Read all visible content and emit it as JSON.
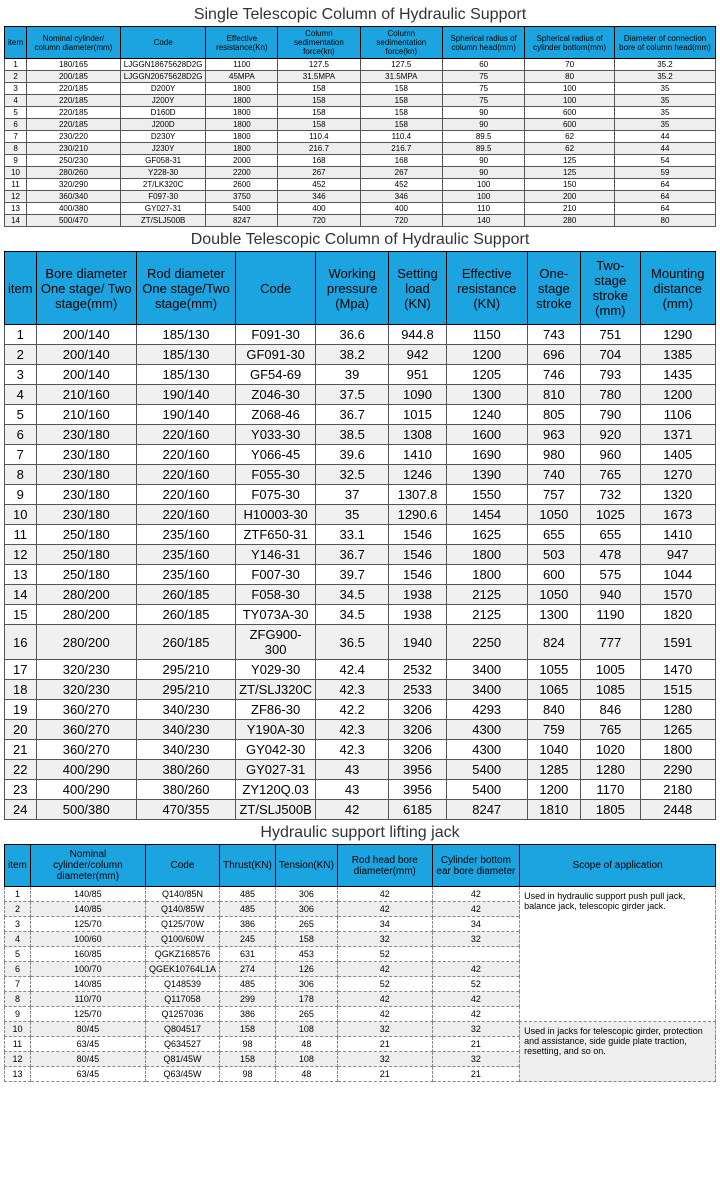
{
  "titles": {
    "t1": "Single Telescopic Column of Hydraulic Support",
    "t2": "Double Telescopic Column of Hydraulic Support",
    "t3": "Hydraulic support lifting jack"
  },
  "table1": {
    "headers": [
      "item",
      "Nominal cylinder/ column diameter(mm)",
      "Code",
      "Effective resistance(Kn)",
      "Column sedimentation force(kn)",
      "Column sedimentation force(kn)",
      "Spherical radius of column head(mm)",
      "Spherical radius of cylinder bottom(mm)",
      "Diameter of connection bore of column head(mm)"
    ],
    "rows": [
      [
        "1",
        "180/165",
        "LJGGN18675628D2G",
        "1100",
        "127.5",
        "127.5",
        "60",
        "70",
        "35.2"
      ],
      [
        "2",
        "200/185",
        "LJGGN20675628D2G",
        "45MPA",
        "31.5MPA",
        "31.5MPA",
        "75",
        "80",
        "35.2"
      ],
      [
        "3",
        "220/185",
        "D200Y",
        "1800",
        "158",
        "158",
        "75",
        "100",
        "35"
      ],
      [
        "4",
        "220/185",
        "J200Y",
        "1800",
        "158",
        "158",
        "75",
        "100",
        "35"
      ],
      [
        "5",
        "220/185",
        "D160D",
        "1800",
        "158",
        "158",
        "90",
        "600",
        "35"
      ],
      [
        "6",
        "220/185",
        "J200D",
        "1800",
        "158",
        "158",
        "90",
        "600",
        "35"
      ],
      [
        "7",
        "230/220",
        "D230Y",
        "1800",
        "110.4",
        "110.4",
        "89.5",
        "62",
        "44"
      ],
      [
        "8",
        "230/210",
        "J230Y",
        "1800",
        "216.7",
        "216.7",
        "89.5",
        "62",
        "44"
      ],
      [
        "9",
        "250/230",
        "GF058-31",
        "2000",
        "168",
        "168",
        "90",
        "125",
        "54"
      ],
      [
        "10",
        "280/260",
        "Y228-30",
        "2200",
        "267",
        "267",
        "90",
        "125",
        "59"
      ],
      [
        "11",
        "320/290",
        "2T/LK320C",
        "2600",
        "452",
        "452",
        "100",
        "150",
        "64"
      ],
      [
        "12",
        "360/340",
        "F097-30",
        "3750",
        "346",
        "346",
        "100",
        "200",
        "64"
      ],
      [
        "13",
        "400/380",
        "GY027-31",
        "5400",
        "400",
        "400",
        "110",
        "210",
        "64"
      ],
      [
        "14",
        "500/470",
        "ZT/SLJ500B",
        "8247",
        "720",
        "720",
        "140",
        "280",
        "80"
      ]
    ]
  },
  "table2": {
    "headers": [
      "item",
      "Bore diameter One stage/ Two stage(mm)",
      "Rod diameter One stage/Two stage(mm)",
      "Code",
      "Working pressure (Mpa)",
      "Setting load (KN)",
      "Effective resistance (KN)",
      "One-stage stroke",
      "Two-stage stroke (mm)",
      "Mounting distance (mm)"
    ],
    "rows": [
      [
        "1",
        "200/140",
        "185/130",
        "F091-30",
        "36.6",
        "944.8",
        "1150",
        "743",
        "751",
        "1290"
      ],
      [
        "2",
        "200/140",
        "185/130",
        "GF091-30",
        "38.2",
        "942",
        "1200",
        "696",
        "704",
        "1385"
      ],
      [
        "3",
        "200/140",
        "185/130",
        "GF54-69",
        "39",
        "951",
        "1205",
        "746",
        "793",
        "1435"
      ],
      [
        "4",
        "210/160",
        "190/140",
        "Z046-30",
        "37.5",
        "1090",
        "1300",
        "810",
        "780",
        "1200"
      ],
      [
        "5",
        "210/160",
        "190/140",
        "Z068-46",
        "36.7",
        "1015",
        "1240",
        "805",
        "790",
        "1106"
      ],
      [
        "6",
        "230/180",
        "220/160",
        "Y033-30",
        "38.5",
        "1308",
        "1600",
        "963",
        "920",
        "1371"
      ],
      [
        "7",
        "230/180",
        "220/160",
        "Y066-45",
        "39.6",
        "1410",
        "1690",
        "980",
        "960",
        "1405"
      ],
      [
        "8",
        "230/180",
        "220/160",
        "F055-30",
        "32.5",
        "1246",
        "1390",
        "740",
        "765",
        "1270"
      ],
      [
        "9",
        "230/180",
        "220/160",
        "F075-30",
        "37",
        "1307.8",
        "1550",
        "757",
        "732",
        "1320"
      ],
      [
        "10",
        "230/180",
        "220/160",
        "H10003-30",
        "35",
        "1290.6",
        "1454",
        "1050",
        "1025",
        "1673"
      ],
      [
        "11",
        "250/180",
        "235/160",
        "ZTF650-31",
        "33.1",
        "1546",
        "1625",
        "655",
        "655",
        "1410"
      ],
      [
        "12",
        "250/180",
        "235/160",
        "Y146-31",
        "36.7",
        "1546",
        "1800",
        "503",
        "478",
        "947"
      ],
      [
        "13",
        "250/180",
        "235/160",
        "F007-30",
        "39.7",
        "1546",
        "1800",
        "600",
        "575",
        "1044"
      ],
      [
        "14",
        "280/200",
        "260/185",
        "F058-30",
        "34.5",
        "1938",
        "2125",
        "1050",
        "940",
        "1570"
      ],
      [
        "15",
        "280/200",
        "260/185",
        "TY073A-30",
        "34.5",
        "1938",
        "2125",
        "1300",
        "1190",
        "1820"
      ],
      [
        "16",
        "280/200",
        "260/185",
        "ZFG900-300",
        "36.5",
        "1940",
        "2250",
        "824",
        "777",
        "1591"
      ],
      [
        "17",
        "320/230",
        "295/210",
        "Y029-30",
        "42.4",
        "2532",
        "3400",
        "1055",
        "1005",
        "1470"
      ],
      [
        "18",
        "320/230",
        "295/210",
        "ZT/SLJ320C",
        "42.3",
        "2533",
        "3400",
        "1065",
        "1085",
        "1515"
      ],
      [
        "19",
        "360/270",
        "340/230",
        "ZF86-30",
        "42.2",
        "3206",
        "4293",
        "840",
        "846",
        "1280"
      ],
      [
        "20",
        "360/270",
        "340/230",
        "Y190A-30",
        "42.3",
        "3206",
        "4300",
        "759",
        "765",
        "1265"
      ],
      [
        "21",
        "360/270",
        "340/230",
        "GY042-30",
        "42.3",
        "3206",
        "4300",
        "1040",
        "1020",
        "1800"
      ],
      [
        "22",
        "400/290",
        "380/260",
        "GY027-31",
        "43",
        "3956",
        "5400",
        "1285",
        "1280",
        "2290"
      ],
      [
        "23",
        "400/290",
        "380/260",
        "ZY120Q.03",
        "43",
        "3956",
        "5400",
        "1200",
        "1170",
        "2180"
      ],
      [
        "24",
        "500/380",
        "470/355",
        "ZT/SLJ500B",
        "42",
        "6185",
        "8247",
        "1810",
        "1805",
        "2448"
      ]
    ]
  },
  "table3": {
    "headers": [
      "item",
      "Nominal cylinder/column diameter(mm)",
      "Code",
      "Thrust(KN)",
      "Tension(KN)",
      "Rod head bore diameter(mm)",
      "Cylinder bottom ear bore diameter",
      "Scope of application"
    ],
    "rows": [
      [
        "1",
        "140/85",
        "Q140/85N",
        "485",
        "306",
        "42",
        "42"
      ],
      [
        "2",
        "140/85",
        "Q140/85W",
        "485",
        "306",
        "42",
        "42"
      ],
      [
        "3",
        "125/70",
        "Q125/70W",
        "386",
        "265",
        "34",
        "34"
      ],
      [
        "4",
        "100/60",
        "Q100/60W",
        "245",
        "158",
        "32",
        "32"
      ],
      [
        "5",
        "160/85",
        "QGKZ168576",
        "631",
        "453",
        "52",
        ""
      ],
      [
        "6",
        "100/70",
        "QGEK10764L1A",
        "274",
        "126",
        "42",
        "42"
      ],
      [
        "7",
        "140/85",
        "Q148539",
        "485",
        "306",
        "52",
        "52"
      ],
      [
        "8",
        "110/70",
        "Q117058",
        "299",
        "178",
        "42",
        "42"
      ],
      [
        "9",
        "125/70",
        "Q1257036",
        "386",
        "265",
        "42",
        "42"
      ],
      [
        "10",
        "80/45",
        "Q804517",
        "158",
        "108",
        "32",
        "32"
      ],
      [
        "11",
        "63/45",
        "Q634527",
        "98",
        "48",
        "21",
        "21"
      ],
      [
        "12",
        "80/45",
        "Q81/45W",
        "158",
        "108",
        "32",
        "32"
      ],
      [
        "13",
        "63/45",
        "Q63/45W",
        "98",
        "48",
        "21",
        "21"
      ]
    ],
    "scope1": "Used in hydraulic support push pull jack, balance jack, telescopic girder jack.",
    "scope2": "Used in jacks for telescopic girder, protection and assistance, side guide plate traction, resetting, and so on."
  }
}
